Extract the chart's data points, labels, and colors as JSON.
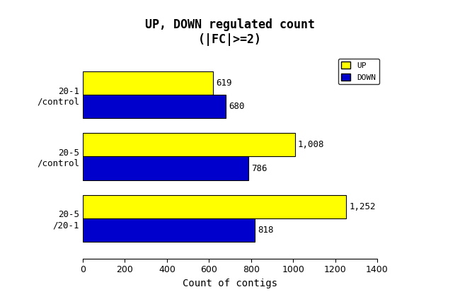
{
  "title_line1": "UP, DOWN regulated count",
  "title_line2": "(|FC|>=2)",
  "categories": [
    "20-1\n/control",
    "20-5\n/control",
    "20-5\n/20-1"
  ],
  "up_values": [
    619,
    1008,
    1252
  ],
  "down_values": [
    680,
    786,
    818
  ],
  "up_labels": [
    "619",
    "1,008",
    "1,252"
  ],
  "down_labels": [
    "680",
    "786",
    "818"
  ],
  "up_color": "#FFFF00",
  "down_color": "#0000CC",
  "bar_edge_color": "#000000",
  "xlim": [
    0,
    1400
  ],
  "xticks": [
    0,
    200,
    400,
    600,
    800,
    1000,
    1200,
    1400
  ],
  "xlabel": "Count of contigs",
  "background_color": "#ffffff",
  "title_fontsize": 12,
  "axis_label_fontsize": 10,
  "tick_fontsize": 9,
  "label_fontsize": 9,
  "legend_labels": [
    "UP",
    "DOWN"
  ],
  "bar_height": 0.38
}
